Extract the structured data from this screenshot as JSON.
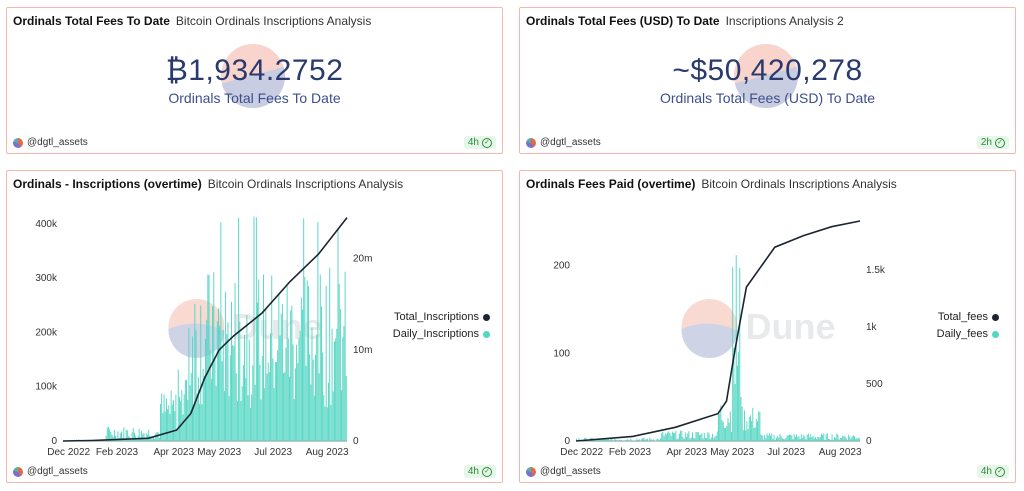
{
  "cards": [
    {
      "title": "Ordinals Total Fees To Date",
      "subtitle": "Bitcoin Ordinals Inscriptions Analysis",
      "value": "₿1,934.2752",
      "label": "Ordinals Total Fees To Date",
      "author": "@dgtl_assets",
      "age": "4h"
    },
    {
      "title": "Ordinals Total Fees (USD) To Date",
      "subtitle": "Inscriptions Analysis 2",
      "value": "~$50,420,278",
      "label": "Ordinals Total Fees (USD) To Date",
      "author": "@dgtl_assets",
      "age": "2h"
    },
    {
      "title": "Ordinals - Inscriptions (overtime)",
      "subtitle": "Bitcoin Ordinals Inscriptions Analysis",
      "author": "@dgtl_assets",
      "age": "4h",
      "watermark": "Dune",
      "legend": [
        "Total_Inscriptions",
        "Daily_Inscriptions"
      ]
    },
    {
      "title": "Ordinals Fees Paid (overtime)",
      "subtitle": "Bitcoin Ordinals Inscriptions Analysis",
      "author": "@dgtl_assets",
      "age": "4h",
      "watermark": "Dune",
      "legend": [
        "Total_fees",
        "Daily_fees"
      ]
    }
  ],
  "colors": {
    "bar": "#54d6c3",
    "line": "#1b2431",
    "border": "#f3b8ae"
  },
  "chart_data": [
    {
      "type": "bar",
      "title": "Ordinals - Inscriptions (overtime)",
      "x_ticks": [
        "Dec 2022",
        "Feb 2023",
        "Apr 2023",
        "May 2023",
        "Jul 2023",
        "Aug 2023"
      ],
      "y_left_ticks": [
        "0",
        "100k",
        "200k",
        "300k",
        "400k"
      ],
      "y_right_ticks": [
        "0",
        "10m",
        "20m"
      ],
      "ylim_left": [
        0,
        420000
      ],
      "ylim_right": [
        0,
        25000000
      ],
      "series": [
        {
          "name": "Daily_Inscriptions",
          "axis": "left",
          "type": "bar",
          "monthly_typical": [
            0,
            2000,
            14000,
            22000,
            45000,
            160000,
            200000,
            170000,
            260000
          ],
          "peak": 418000
        },
        {
          "name": "Total_Inscriptions",
          "axis": "right",
          "type": "line",
          "points": [
            [
              0,
              0
            ],
            [
              0.1,
              0.05
            ],
            [
              0.3,
              0.3
            ],
            [
              0.4,
              1.2
            ],
            [
              0.45,
              3.0
            ],
            [
              0.5,
              7.0
            ],
            [
              0.55,
              10.0
            ],
            [
              0.6,
              11.5
            ],
            [
              0.7,
              14.0
            ],
            [
              0.8,
              17.5
            ],
            [
              0.9,
              20.5
            ],
            [
              1.0,
              24.5
            ]
          ]
        }
      ],
      "legend": "right"
    },
    {
      "type": "bar",
      "title": "Ordinals Fees Paid (overtime)",
      "x_ticks": [
        "Dec 2022",
        "Feb 2023",
        "Apr 2023",
        "May 2023",
        "Jul 2023",
        "Aug 2023"
      ],
      "y_left_ticks": [
        "0",
        "100",
        "200"
      ],
      "y_right_ticks": [
        "0",
        "500",
        "1k",
        "1.5k"
      ],
      "ylim_left": [
        0,
        260
      ],
      "ylim_right": [
        0,
        2000
      ],
      "series": [
        {
          "name": "Daily_fees",
          "axis": "left",
          "type": "bar",
          "peak": 258
        },
        {
          "name": "Total_fees",
          "axis": "right",
          "type": "line",
          "points": [
            [
              0,
              0
            ],
            [
              0.2,
              40
            ],
            [
              0.35,
              120
            ],
            [
              0.5,
              240
            ],
            [
              0.53,
              350
            ],
            [
              0.56,
              800
            ],
            [
              0.6,
              1350
            ],
            [
              0.7,
              1700
            ],
            [
              0.8,
              1800
            ],
            [
              0.9,
              1880
            ],
            [
              1.0,
              1930
            ]
          ]
        }
      ],
      "legend": "right"
    }
  ]
}
